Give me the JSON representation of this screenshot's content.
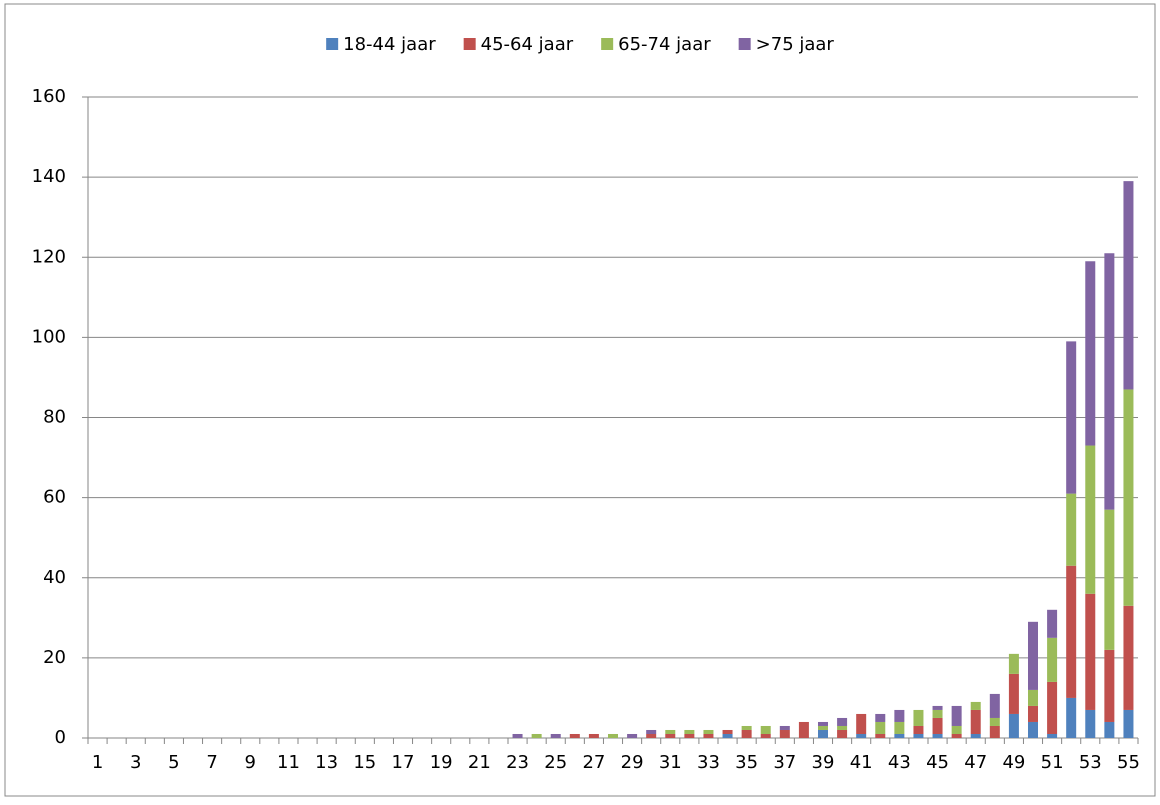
{
  "chart_data": {
    "type": "stacked_bar",
    "categories": [
      "1",
      null,
      "3",
      null,
      "5",
      null,
      "7",
      null,
      "9",
      null,
      "11",
      null,
      "13",
      null,
      "15",
      null,
      "17",
      null,
      "19",
      null,
      "21",
      null,
      "23",
      null,
      "25",
      null,
      "27",
      null,
      "29",
      null,
      "31",
      null,
      "33",
      null,
      "35",
      null,
      "37",
      null,
      "39",
      null,
      "41",
      null,
      "43",
      null,
      "45",
      null,
      "47",
      null,
      "49",
      null,
      "51",
      null,
      "53",
      null,
      "55"
    ],
    "series": [
      {
        "name": "18-44 jaar",
        "color": "#4f81bd",
        "values": [
          0,
          0,
          0,
          0,
          0,
          0,
          0,
          0,
          0,
          0,
          0,
          0,
          0,
          0,
          0,
          0,
          0,
          0,
          0,
          0,
          0,
          0,
          0,
          0,
          0,
          0,
          0,
          0,
          0,
          0,
          0,
          0,
          0,
          1,
          0,
          0,
          0,
          0,
          2,
          0,
          1,
          0,
          1,
          1,
          1,
          0,
          1,
          0,
          6,
          4,
          1,
          10,
          7,
          4,
          7
        ]
      },
      {
        "name": "45-64 jaar",
        "color": "#c0504d",
        "values": [
          0,
          0,
          0,
          0,
          0,
          0,
          0,
          0,
          0,
          0,
          0,
          0,
          0,
          0,
          0,
          0,
          0,
          0,
          0,
          0,
          0,
          0,
          0,
          0,
          0,
          1,
          1,
          0,
          0,
          1,
          1,
          1,
          1,
          1,
          2,
          1,
          2,
          4,
          0,
          2,
          5,
          1,
          0,
          2,
          4,
          1,
          6,
          3,
          10,
          4,
          13,
          33,
          29,
          18,
          26
        ]
      },
      {
        "name": "65-74 jaar",
        "color": "#9bbb59",
        "values": [
          0,
          0,
          0,
          0,
          0,
          0,
          0,
          0,
          0,
          0,
          0,
          0,
          0,
          0,
          0,
          0,
          0,
          0,
          0,
          0,
          0,
          0,
          0,
          1,
          0,
          0,
          0,
          1,
          0,
          0,
          1,
          1,
          1,
          0,
          1,
          2,
          0,
          0,
          1,
          1,
          0,
          3,
          3,
          4,
          2,
          2,
          2,
          2,
          5,
          4,
          11,
          18,
          37,
          35,
          54
        ]
      },
      {
        "name": ">75 jaar",
        "color": "#8064a2",
        "values": [
          0,
          0,
          0,
          0,
          0,
          0,
          0,
          0,
          0,
          0,
          0,
          0,
          0,
          0,
          0,
          0,
          0,
          0,
          0,
          0,
          0,
          0,
          1,
          0,
          1,
          0,
          0,
          0,
          1,
          1,
          0,
          0,
          0,
          0,
          0,
          0,
          1,
          0,
          1,
          2,
          0,
          2,
          3,
          0,
          1,
          5,
          0,
          6,
          0,
          17,
          7,
          38,
          46,
          64,
          52
        ]
      }
    ],
    "ylim": [
      0,
      160
    ],
    "yticks": [
      0,
      20,
      40,
      60,
      80,
      100,
      120,
      140,
      160
    ],
    "grid": true,
    "legend": "top"
  }
}
